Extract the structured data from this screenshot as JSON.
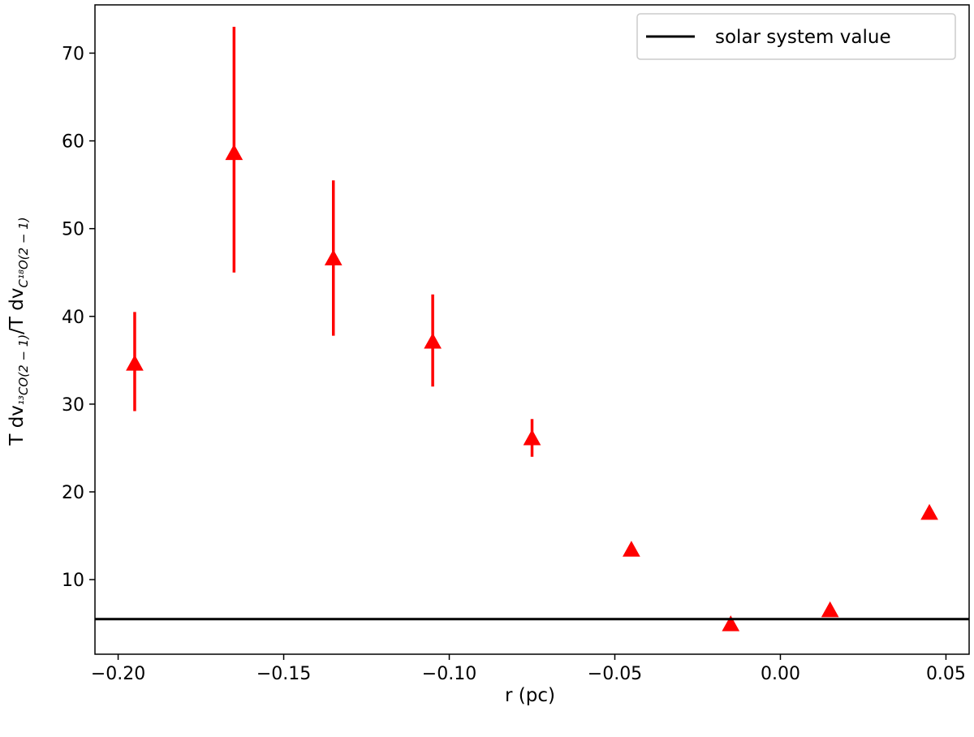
{
  "chart_data": {
    "type": "scatter",
    "xlabel": "r (pc)",
    "ylabel": {
      "prefix": "T dv",
      "sub1": "¹³CO(2 − 1)",
      "mid": "/T dv",
      "sub2": "C¹⁸O(2 − 1)"
    },
    "xlim": [
      -0.207,
      0.057
    ],
    "ylim": [
      1.5,
      75.5
    ],
    "xticks": [
      -0.2,
      -0.15,
      -0.1,
      -0.05,
      0.0,
      0.05
    ],
    "xtick_labels": [
      "−0.20",
      "−0.15",
      "−0.10",
      "−0.05",
      "0.00",
      "0.05"
    ],
    "yticks": [
      10,
      20,
      30,
      40,
      50,
      60,
      70
    ],
    "ytick_labels": [
      "10",
      "20",
      "30",
      "40",
      "50",
      "60",
      "70"
    ],
    "grid": false,
    "legend_position": "top-right",
    "marker_color": "#ff0000",
    "line_color": "#000000",
    "series": [
      {
        "type": "errorbar",
        "marker": "triangle",
        "x": [
          -0.195,
          -0.165,
          -0.135,
          -0.105,
          -0.075,
          -0.045,
          -0.015,
          0.015,
          0.045
        ],
        "y": [
          34.5,
          58.5,
          46.5,
          37.0,
          26.0,
          13.3,
          4.8,
          6.4,
          17.5
        ],
        "err_low": [
          29.2,
          45.0,
          37.8,
          32.0,
          24.0,
          null,
          null,
          null,
          null
        ],
        "err_high": [
          40.5,
          73.0,
          55.5,
          42.5,
          28.3,
          null,
          null,
          null,
          null
        ]
      },
      {
        "name": "solar system value",
        "type": "hline",
        "y": 5.5
      }
    ]
  }
}
